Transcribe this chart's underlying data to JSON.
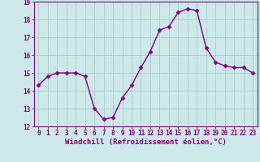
{
  "x": [
    0,
    1,
    2,
    3,
    4,
    5,
    6,
    7,
    8,
    9,
    10,
    11,
    12,
    13,
    14,
    15,
    16,
    17,
    18,
    19,
    20,
    21,
    22,
    23
  ],
  "y": [
    14.3,
    14.8,
    15.0,
    15.0,
    15.0,
    14.8,
    13.0,
    12.4,
    12.5,
    13.6,
    14.3,
    15.3,
    16.2,
    17.4,
    17.6,
    18.4,
    18.6,
    18.5,
    16.4,
    15.6,
    15.4,
    15.3,
    15.3,
    15.0
  ],
  "line_color": "#800080",
  "marker": "D",
  "markersize": 2.5,
  "linewidth": 1.0,
  "background_color": "#cce8e8",
  "grid_color": "#aacccc",
  "xlabel": "Windchill (Refroidissement éolien,°C)",
  "ylabel": "",
  "title": "",
  "ylim": [
    12,
    19
  ],
  "xlim": [
    -0.5,
    23.5
  ],
  "yticks": [
    12,
    13,
    14,
    15,
    16,
    17,
    18,
    19
  ],
  "xticks": [
    0,
    1,
    2,
    3,
    4,
    5,
    6,
    7,
    8,
    9,
    10,
    11,
    12,
    13,
    14,
    15,
    16,
    17,
    18,
    19,
    20,
    21,
    22,
    23
  ],
  "xlabel_color": "#800080",
  "tick_color": "#800080",
  "tick_fontsize": 5.5,
  "xlabel_fontsize": 6.5,
  "axis_color": "#800080"
}
